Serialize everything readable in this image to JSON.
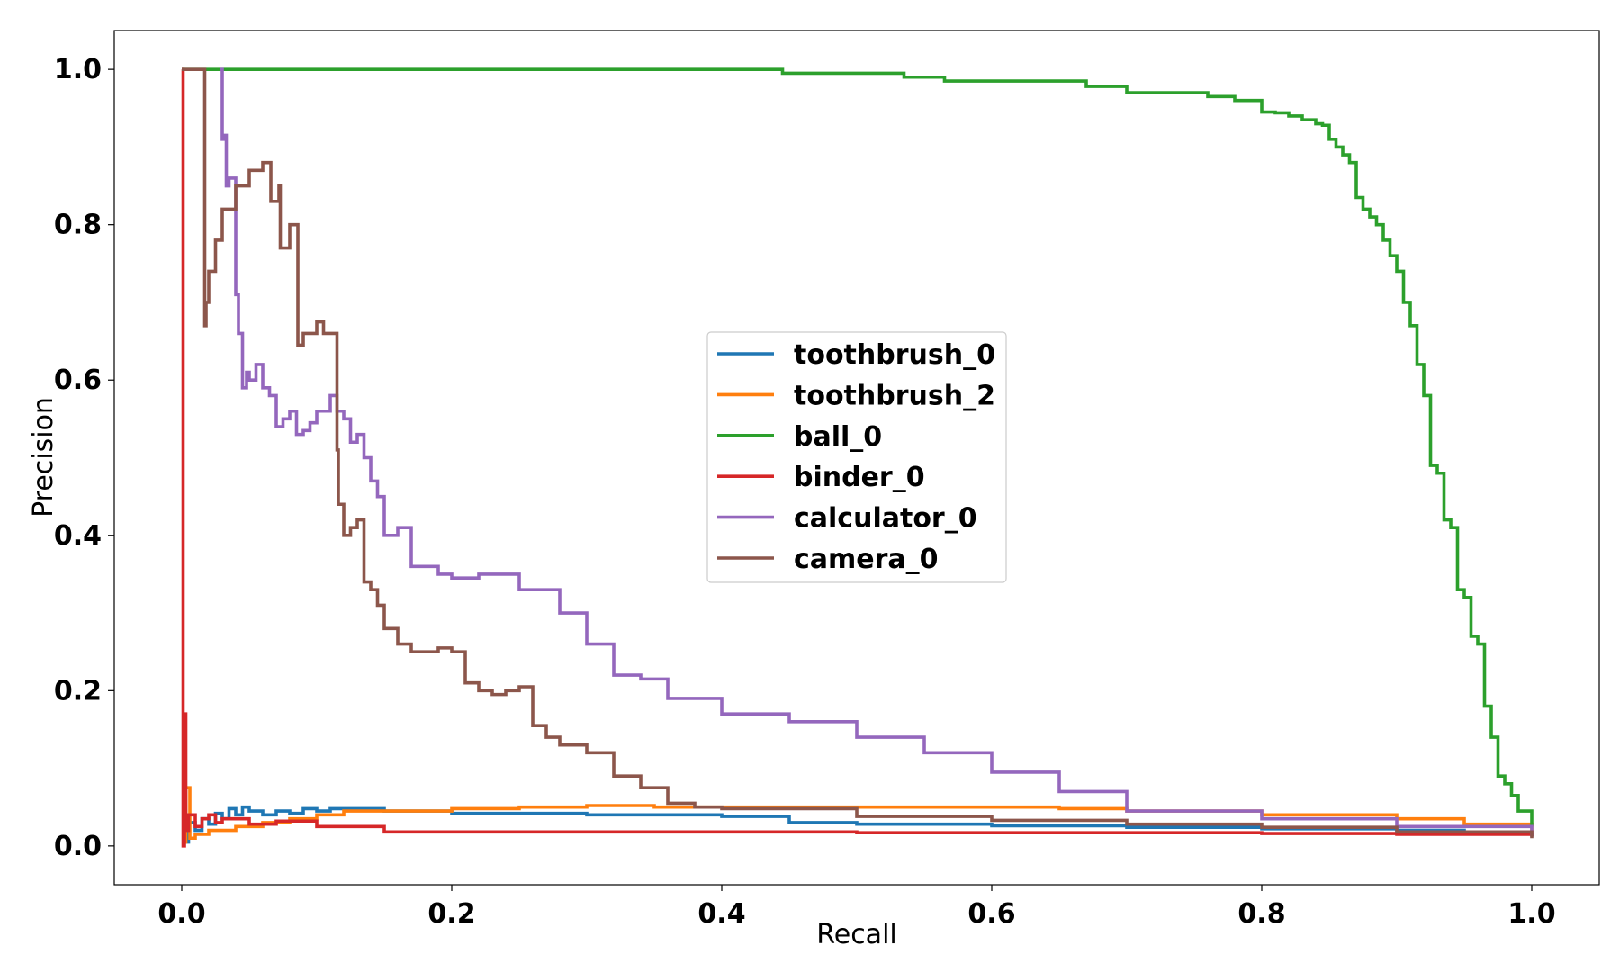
{
  "chart_data": {
    "type": "line",
    "title": "",
    "xlabel": "Recall",
    "ylabel": "Precision",
    "xlim": [
      -0.05,
      1.05
    ],
    "ylim": [
      -0.05,
      1.05
    ],
    "xticks": [
      0.0,
      0.2,
      0.4,
      0.6,
      0.8,
      1.0
    ],
    "xtick_labels": [
      "0.0",
      "0.2",
      "0.4",
      "0.6",
      "0.8",
      "1.0"
    ],
    "yticks": [
      0.0,
      0.2,
      0.4,
      0.6,
      0.8,
      1.0
    ],
    "ytick_labels": [
      "0.0",
      "0.2",
      "0.4",
      "0.6",
      "0.8",
      "1.0"
    ],
    "grid": false,
    "legend_position": "center",
    "series": [
      {
        "name": "toothbrush_0",
        "color": "#1f77b4",
        "x": [
          0.0,
          0.005,
          0.01,
          0.015,
          0.02,
          0.025,
          0.03,
          0.035,
          0.04,
          0.045,
          0.05,
          0.06,
          0.07,
          0.08,
          0.09,
          0.1,
          0.11,
          0.15,
          0.2,
          0.3,
          0.4,
          0.45,
          0.5,
          0.6,
          0.7,
          0.8,
          0.9,
          0.95,
          1.0
        ],
        "y": [
          0.005,
          0.03,
          0.02,
          0.035,
          0.028,
          0.042,
          0.035,
          0.048,
          0.04,
          0.05,
          0.045,
          0.04,
          0.045,
          0.042,
          0.048,
          0.045,
          0.048,
          0.045,
          0.042,
          0.04,
          0.038,
          0.03,
          0.028,
          0.026,
          0.024,
          0.022,
          0.02,
          0.018,
          0.012
        ]
      },
      {
        "name": "toothbrush_2",
        "color": "#ff7f0e",
        "x": [
          0.0,
          0.003,
          0.006,
          0.01,
          0.02,
          0.04,
          0.06,
          0.08,
          0.1,
          0.12,
          0.15,
          0.2,
          0.25,
          0.3,
          0.35,
          0.4,
          0.5,
          0.6,
          0.65,
          0.7,
          0.8,
          0.9,
          0.95,
          1.0
        ],
        "y": [
          0.005,
          0.075,
          0.01,
          0.015,
          0.02,
          0.025,
          0.03,
          0.035,
          0.04,
          0.045,
          0.045,
          0.048,
          0.05,
          0.052,
          0.05,
          0.05,
          0.05,
          0.05,
          0.048,
          0.045,
          0.04,
          0.035,
          0.028,
          0.015
        ]
      },
      {
        "name": "ball_0",
        "color": "#2ca02c",
        "x": [
          0.0,
          0.44,
          0.445,
          0.53,
          0.535,
          0.56,
          0.565,
          0.66,
          0.67,
          0.7,
          0.72,
          0.74,
          0.76,
          0.78,
          0.8,
          0.81,
          0.82,
          0.83,
          0.84,
          0.845,
          0.85,
          0.855,
          0.86,
          0.865,
          0.87,
          0.875,
          0.88,
          0.885,
          0.89,
          0.895,
          0.9,
          0.905,
          0.91,
          0.915,
          0.92,
          0.925,
          0.93,
          0.935,
          0.94,
          0.945,
          0.95,
          0.955,
          0.96,
          0.965,
          0.97,
          0.975,
          0.98,
          0.985,
          0.99,
          1.0
        ],
        "y": [
          1.0,
          1.0,
          0.995,
          0.995,
          0.99,
          0.99,
          0.985,
          0.985,
          0.978,
          0.97,
          0.97,
          0.97,
          0.965,
          0.96,
          0.945,
          0.944,
          0.94,
          0.935,
          0.93,
          0.928,
          0.91,
          0.9,
          0.89,
          0.88,
          0.835,
          0.82,
          0.81,
          0.8,
          0.78,
          0.76,
          0.74,
          0.7,
          0.67,
          0.62,
          0.58,
          0.49,
          0.48,
          0.42,
          0.41,
          0.33,
          0.32,
          0.27,
          0.26,
          0.18,
          0.14,
          0.09,
          0.08,
          0.065,
          0.045,
          0.025
        ]
      },
      {
        "name": "binder_0",
        "color": "#d62728",
        "x": [
          0.0,
          0.001,
          0.002,
          0.003,
          0.005,
          0.01,
          0.015,
          0.02,
          0.025,
          0.03,
          0.05,
          0.07,
          0.1,
          0.15,
          0.2,
          0.3,
          0.4,
          0.5,
          0.6,
          0.7,
          0.8,
          0.9,
          1.0
        ],
        "y": [
          1.0,
          0.0,
          0.17,
          0.02,
          0.04,
          0.025,
          0.035,
          0.04,
          0.03,
          0.035,
          0.028,
          0.032,
          0.025,
          0.018,
          0.018,
          0.018,
          0.018,
          0.017,
          0.017,
          0.017,
          0.016,
          0.015,
          0.012
        ]
      },
      {
        "name": "calculator_0",
        "color": "#9467bd",
        "x": [
          0.028,
          0.03,
          0.032,
          0.033,
          0.035,
          0.04,
          0.042,
          0.045,
          0.048,
          0.05,
          0.055,
          0.06,
          0.065,
          0.07,
          0.075,
          0.08,
          0.085,
          0.09,
          0.095,
          0.1,
          0.11,
          0.115,
          0.12,
          0.125,
          0.13,
          0.135,
          0.14,
          0.145,
          0.15,
          0.16,
          0.17,
          0.18,
          0.19,
          0.2,
          0.22,
          0.25,
          0.28,
          0.3,
          0.32,
          0.34,
          0.36,
          0.4,
          0.45,
          0.5,
          0.55,
          0.6,
          0.65,
          0.7,
          0.8,
          0.9,
          1.0
        ],
        "y": [
          1.0,
          0.91,
          0.915,
          0.85,
          0.86,
          0.71,
          0.66,
          0.59,
          0.61,
          0.6,
          0.62,
          0.59,
          0.58,
          0.54,
          0.55,
          0.56,
          0.53,
          0.535,
          0.545,
          0.56,
          0.58,
          0.56,
          0.55,
          0.52,
          0.53,
          0.5,
          0.47,
          0.45,
          0.4,
          0.41,
          0.36,
          0.36,
          0.35,
          0.345,
          0.35,
          0.33,
          0.3,
          0.26,
          0.22,
          0.215,
          0.19,
          0.17,
          0.16,
          0.14,
          0.12,
          0.095,
          0.07,
          0.045,
          0.035,
          0.025,
          0.012
        ]
      },
      {
        "name": "camera_0",
        "color": "#8c564b",
        "x": [
          0.0,
          0.016,
          0.017,
          0.018,
          0.02,
          0.025,
          0.03,
          0.04,
          0.05,
          0.06,
          0.065,
          0.066,
          0.072,
          0.073,
          0.08,
          0.085,
          0.086,
          0.09,
          0.1,
          0.105,
          0.11,
          0.115,
          0.116,
          0.12,
          0.125,
          0.13,
          0.135,
          0.14,
          0.145,
          0.15,
          0.16,
          0.17,
          0.18,
          0.19,
          0.2,
          0.21,
          0.22,
          0.23,
          0.24,
          0.25,
          0.26,
          0.27,
          0.28,
          0.3,
          0.32,
          0.34,
          0.36,
          0.38,
          0.4,
          0.5,
          0.6,
          0.7,
          0.8,
          0.9,
          1.0
        ],
        "y": [
          1.0,
          1.0,
          0.67,
          0.7,
          0.74,
          0.78,
          0.82,
          0.85,
          0.87,
          0.88,
          0.88,
          0.83,
          0.85,
          0.77,
          0.8,
          0.8,
          0.645,
          0.66,
          0.675,
          0.66,
          0.66,
          0.51,
          0.44,
          0.4,
          0.41,
          0.42,
          0.34,
          0.33,
          0.31,
          0.28,
          0.26,
          0.25,
          0.25,
          0.255,
          0.25,
          0.21,
          0.2,
          0.195,
          0.2,
          0.205,
          0.155,
          0.14,
          0.13,
          0.12,
          0.09,
          0.075,
          0.055,
          0.05,
          0.048,
          0.038,
          0.033,
          0.028,
          0.024,
          0.018,
          0.01
        ]
      }
    ]
  }
}
